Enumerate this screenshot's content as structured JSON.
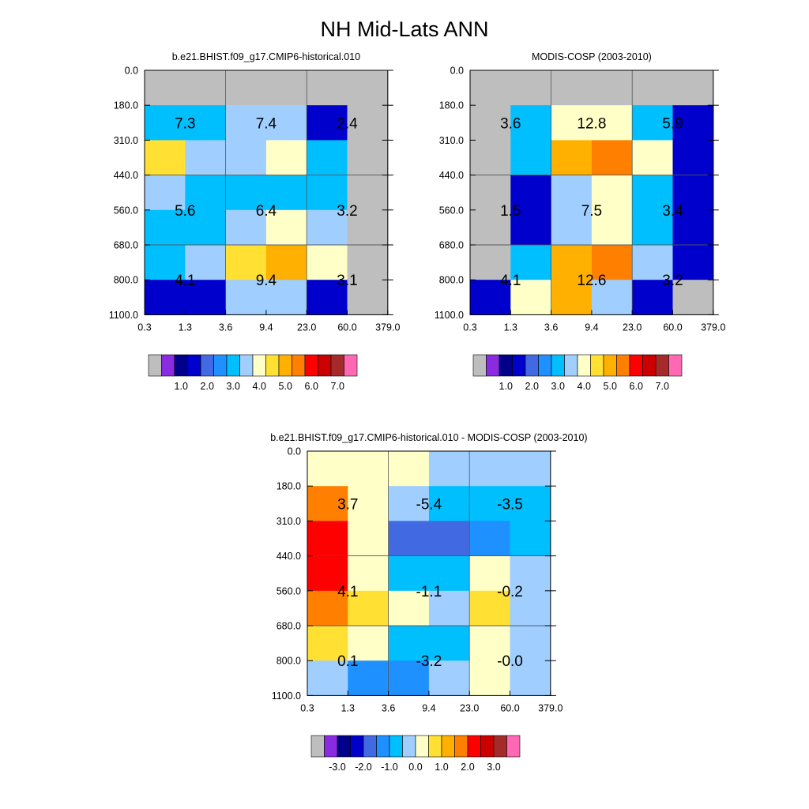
{
  "figure_title": "NH Mid-Lats ANN",
  "colors": {
    "missing": "#bebebe",
    "grid_line": "#555555",
    "palette": [
      "#8a2be2",
      "#00008b",
      "#0000cd",
      "#4169e1",
      "#1e90ff",
      "#00bfff",
      "#a0cfff",
      "#ffffc8",
      "#ffe033",
      "#ffb000",
      "#ff8000",
      "#ff0000",
      "#cc0000",
      "#a52a2a",
      "#ff69b4"
    ]
  },
  "chart_data": [
    {
      "type": "heatmap",
      "title": "b.e21.BHIST.f09_g17.CMIP6-historical.010",
      "x_tick_labels": [
        "0.3",
        "1.3",
        "3.6",
        "9.4",
        "23.0",
        "60.0",
        "379.0"
      ],
      "y_tick_labels": [
        "0.0",
        "180.0",
        "310.0",
        "440.0",
        "560.0",
        "680.0",
        "800.0",
        "1100.0"
      ],
      "cells": [
        [
          null,
          null,
          null,
          null,
          null,
          null
        ],
        [
          1.6,
          1.6,
          2.0,
          2.0,
          0.5,
          null
        ],
        [
          3.2,
          2.0,
          2.0,
          2.5,
          1.5,
          null
        ],
        [
          2.0,
          1.5,
          1.5,
          1.5,
          1.5,
          null
        ],
        [
          1.5,
          1.5,
          2.0,
          2.5,
          2.0,
          null
        ],
        [
          1.5,
          2.0,
          3.0,
          3.5,
          2.5,
          null
        ],
        [
          0.5,
          0.5,
          2.0,
          2.0,
          0.5,
          null
        ]
      ],
      "annotations": [
        [
          "7.3",
          "7.4",
          "2.4"
        ],
        [
          "5.6",
          "6.4",
          "3.2"
        ],
        [
          "4.1",
          "9.4",
          "3.1"
        ]
      ],
      "colorbar": {
        "kind": "abs",
        "labels": [
          "1.0",
          "2.0",
          "3.0",
          "4.0",
          "5.0",
          "6.0",
          "7.0"
        ],
        "levels": [
          0.0,
          0.2,
          0.5,
          0.8,
          1.0,
          1.5,
          2.0,
          2.5,
          3.0,
          3.5,
          4.0,
          4.5,
          5.0,
          6.0,
          7.0
        ]
      }
    },
    {
      "type": "heatmap",
      "title": "MODIS-COSP (2003-2010)",
      "x_tick_labels": [
        "0.3",
        "1.3",
        "3.6",
        "9.4",
        "23.0",
        "60.0",
        "379.0"
      ],
      "y_tick_labels": [
        "0.0",
        "180.0",
        "310.0",
        "440.0",
        "560.0",
        "680.0",
        "800.0",
        "1100.0"
      ],
      "cells": [
        [
          null,
          null,
          null,
          null,
          null,
          null
        ],
        [
          null,
          1.5,
          2.5,
          2.5,
          1.6,
          0.5
        ],
        [
          null,
          1.6,
          3.8,
          4.2,
          2.5,
          0.5
        ],
        [
          null,
          0.5,
          2.0,
          2.5,
          1.5,
          0.5
        ],
        [
          null,
          0.5,
          2.0,
          2.5,
          1.5,
          0.5
        ],
        [
          null,
          1.5,
          3.5,
          4.2,
          2.0,
          0.5
        ],
        [
          0.5,
          2.5,
          3.5,
          2.0,
          0.5,
          null
        ]
      ],
      "annotations": [
        [
          "3.6",
          "12.8",
          "5.9"
        ],
        [
          "1.5",
          "7.5",
          "3.4"
        ],
        [
          "4.1",
          "12.6",
          "3.2"
        ]
      ],
      "colorbar": {
        "kind": "abs",
        "labels": [
          "1.0",
          "2.0",
          "3.0",
          "4.0",
          "5.0",
          "6.0",
          "7.0"
        ],
        "levels": [
          0.0,
          0.2,
          0.5,
          0.8,
          1.0,
          1.5,
          2.0,
          2.5,
          3.0,
          3.5,
          4.0,
          4.5,
          5.0,
          6.0,
          7.0
        ]
      }
    },
    {
      "type": "heatmap",
      "title": "b.e21.BHIST.f09_g17.CMIP6-historical.010 - MODIS-COSP (2003-2010)",
      "x_tick_labels": [
        "0.3",
        "1.3",
        "3.6",
        "9.4",
        "23.0",
        "60.0",
        "379.0"
      ],
      "y_tick_labels": [
        "0.0",
        "180.0",
        "310.0",
        "440.0",
        "560.0",
        "680.0",
        "800.0",
        "1100.0"
      ],
      "cells": [
        [
          0.25,
          0.25,
          0.25,
          -0.25,
          -0.25,
          -0.25
        ],
        [
          1.75,
          0.25,
          -0.25,
          -0.75,
          -0.75,
          -0.75
        ],
        [
          2.25,
          0.25,
          -1.75,
          -1.75,
          -1.25,
          -0.75
        ],
        [
          2.0,
          0.25,
          -0.75,
          -0.75,
          0.25,
          -0.25
        ],
        [
          1.75,
          0.75,
          0.25,
          -0.25,
          0.75,
          -0.25
        ],
        [
          0.75,
          0.25,
          -0.75,
          -0.75,
          0.25,
          -0.25
        ],
        [
          -0.25,
          -1.25,
          -1.25,
          -0.25,
          0.25,
          -0.25
        ]
      ],
      "annotations": [
        [
          "3.7",
          "-5.4",
          "-3.5"
        ],
        [
          "4.1",
          "-1.1",
          "-0.2"
        ],
        [
          "0.1",
          "-3.2",
          "-0.0"
        ]
      ],
      "colorbar": {
        "kind": "diff",
        "labels": [
          "-3.0",
          "-2.0",
          "-1.0",
          "0.0",
          "1.0",
          "2.0",
          "3.0"
        ],
        "levels": [
          -3.5,
          -3.0,
          -2.5,
          -2.0,
          -1.5,
          -1.0,
          -0.5,
          0.0,
          0.5,
          1.0,
          1.5,
          2.0,
          2.5,
          3.0,
          3.5
        ]
      }
    }
  ]
}
